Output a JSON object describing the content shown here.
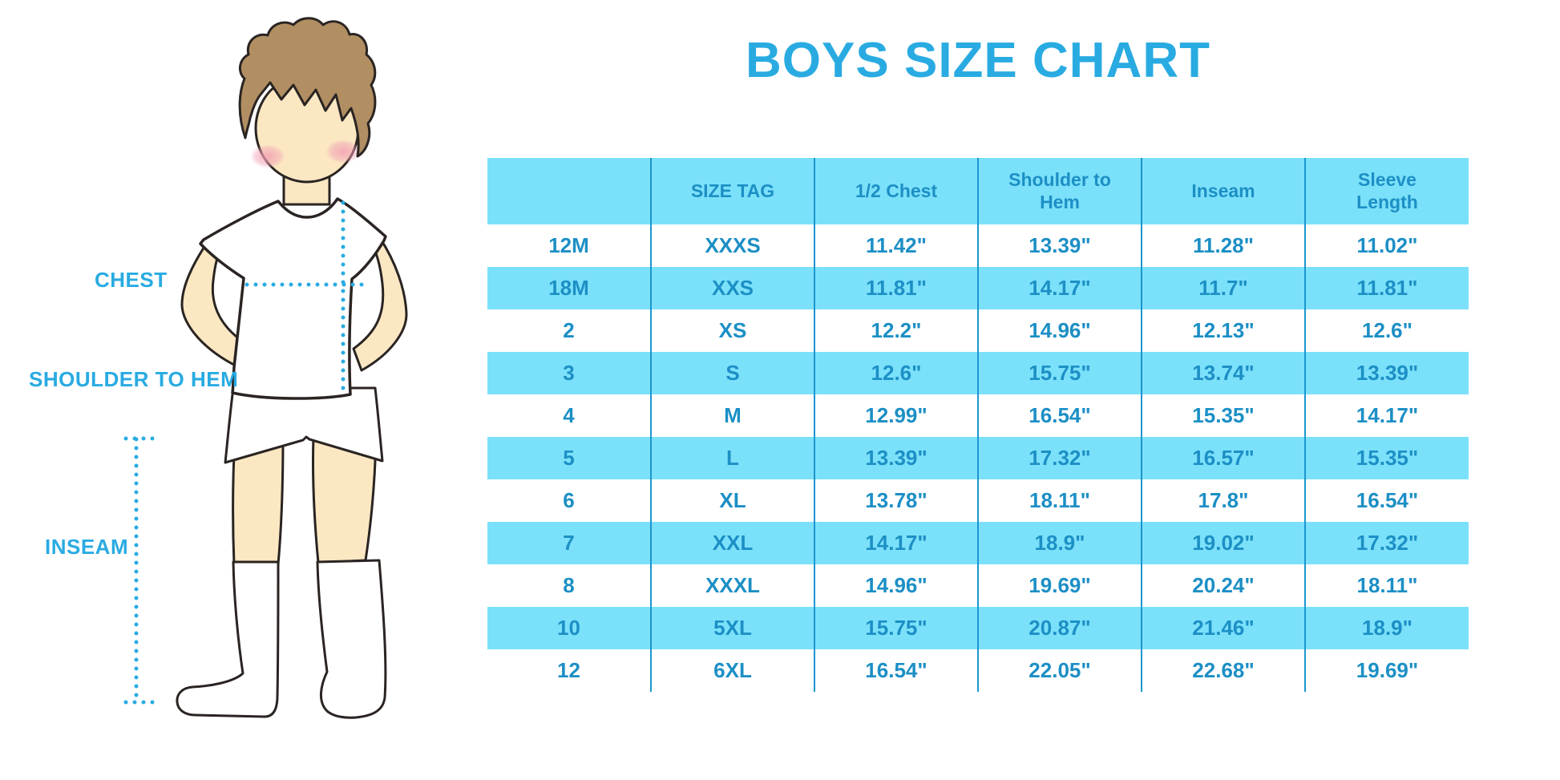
{
  "colors": {
    "accent": "#29ABE2",
    "stripe": "#7BE1FA",
    "line": "#1B96CE",
    "text": "#1C8FC5",
    "ink": "#2A2422",
    "skin": "#FBE8C3",
    "hair": "#B18F63"
  },
  "diagram": {
    "labels": {
      "chest": "CHEST",
      "shoulder_to_hem": "SHOULDER TO HEM",
      "inseam": "INSEAM"
    }
  },
  "chart_data": {
    "type": "table",
    "title": "BOYS SIZE CHART",
    "columns": [
      "",
      "SIZE TAG",
      "1/2 Chest",
      "Shoulder to Hem",
      "Inseam",
      "Sleeve Length"
    ],
    "rows": [
      [
        "12M",
        "XXXS",
        "11.42\"",
        "13.39\"",
        "11.28\"",
        "11.02\""
      ],
      [
        "18M",
        "XXS",
        "11.81\"",
        "14.17\"",
        "11.7\"",
        "11.81\""
      ],
      [
        "2",
        "XS",
        "12.2\"",
        "14.96\"",
        "12.13\"",
        "12.6\""
      ],
      [
        "3",
        "S",
        "12.6\"",
        "15.75\"",
        "13.74\"",
        "13.39\""
      ],
      [
        "4",
        "M",
        "12.99\"",
        "16.54\"",
        "15.35\"",
        "14.17\""
      ],
      [
        "5",
        "L",
        "13.39\"",
        "17.32\"",
        "16.57\"",
        "15.35\""
      ],
      [
        "6",
        "XL",
        "13.78\"",
        "18.11\"",
        "17.8\"",
        "16.54\""
      ],
      [
        "7",
        "XXL",
        "14.17\"",
        "18.9\"",
        "19.02\"",
        "17.32\""
      ],
      [
        "8",
        "XXXL",
        "14.96\"",
        "19.69\"",
        "20.24\"",
        "18.11\""
      ],
      [
        "10",
        "5XL",
        "15.75\"",
        "20.87\"",
        "21.46\"",
        "18.9\""
      ],
      [
        "12",
        "6XL",
        "16.54\"",
        "22.05\"",
        "22.68\"",
        "19.69\""
      ]
    ],
    "layout": {
      "striped": true,
      "stripe_start_row": "18M",
      "grid": "vertical-only"
    }
  }
}
